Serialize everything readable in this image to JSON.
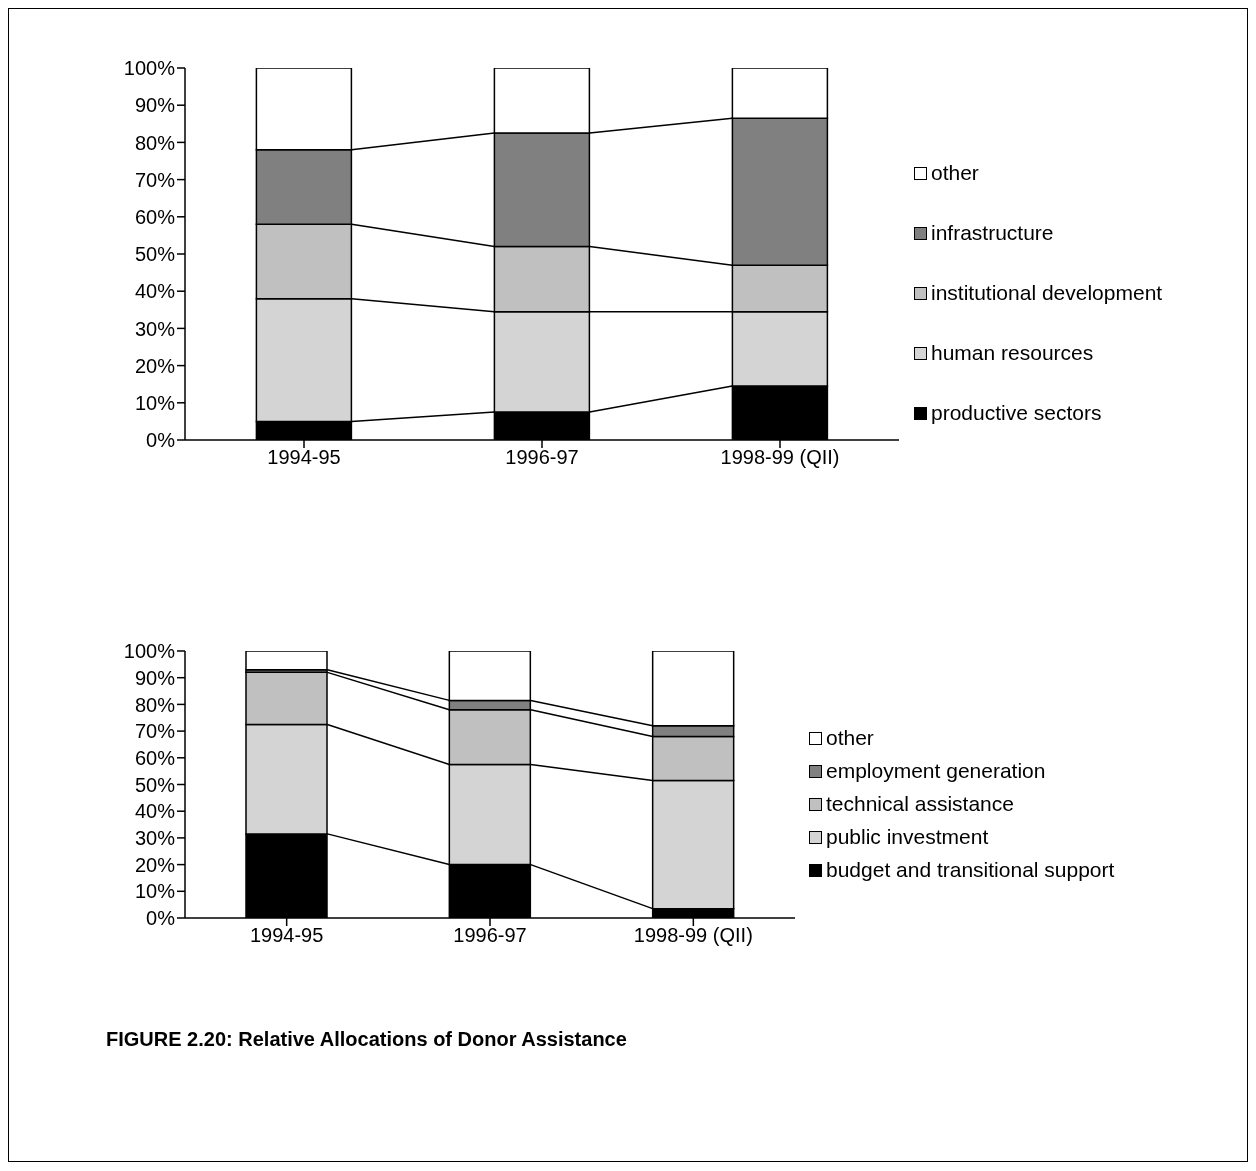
{
  "chart_data": [
    {
      "type": "bar",
      "stacked": true,
      "categories": [
        "1994-95",
        "1996-97",
        "1998-99 (QII)"
      ],
      "ylim": [
        0,
        100
      ],
      "yticks": [
        {
          "value": 0,
          "label": "0%"
        },
        {
          "value": 10,
          "label": "10%"
        },
        {
          "value": 20,
          "label": "20%"
        },
        {
          "value": 30,
          "label": "30%"
        },
        {
          "value": 40,
          "label": "40%"
        },
        {
          "value": 50,
          "label": "50%"
        },
        {
          "value": 60,
          "label": "60%"
        },
        {
          "value": 70,
          "label": "70%"
        },
        {
          "value": 80,
          "label": "80%"
        },
        {
          "value": 90,
          "label": "90%"
        },
        {
          "value": 100,
          "label": "100%"
        }
      ],
      "grid": false,
      "legend": "right",
      "series": [
        {
          "name": "productive sectors",
          "color": "#000000",
          "values": [
            5,
            7.5,
            14.5
          ]
        },
        {
          "name": "human resources",
          "color": "#d4d4d4",
          "values": [
            33,
            27,
            20
          ]
        },
        {
          "name": "institutional development",
          "color": "#c0c0c0",
          "values": [
            20,
            17.5,
            12.5
          ]
        },
        {
          "name": "infrastructure",
          "color": "#808080",
          "values": [
            20,
            30.5,
            39.5
          ]
        },
        {
          "name": "other",
          "color": "#ffffff",
          "values": [
            22,
            17.5,
            13.5
          ]
        }
      ]
    },
    {
      "type": "bar",
      "stacked": true,
      "categories": [
        "1994-95",
        "1996-97",
        "1998-99 (QII)"
      ],
      "ylim": [
        0,
        100
      ],
      "yticks": [
        {
          "value": 0,
          "label": "0%"
        },
        {
          "value": 10,
          "label": "10%"
        },
        {
          "value": 20,
          "label": "20%"
        },
        {
          "value": 30,
          "label": "30%"
        },
        {
          "value": 40,
          "label": "40%"
        },
        {
          "value": 50,
          "label": "50%"
        },
        {
          "value": 60,
          "label": "60%"
        },
        {
          "value": 70,
          "label": "70%"
        },
        {
          "value": 80,
          "label": "80%"
        },
        {
          "value": 90,
          "label": "90%"
        },
        {
          "value": 100,
          "label": "100%"
        }
      ],
      "grid": false,
      "legend": "right",
      "annotations": [
        "FIGURE 2.20: Relative Allocations of Donor Assistance"
      ],
      "series": [
        {
          "name": "budget and transitional support",
          "color": "#000000",
          "values": [
            31.5,
            20,
            3.5
          ]
        },
        {
          "name": "public investment",
          "color": "#d4d4d4",
          "values": [
            41,
            37.5,
            48
          ]
        },
        {
          "name": "technical assistance",
          "color": "#c0c0c0",
          "values": [
            19.5,
            20.5,
            16.5
          ]
        },
        {
          "name": "employment generation",
          "color": "#808080",
          "values": [
            1,
            3.5,
            4
          ]
        },
        {
          "name": "other",
          "color": "#ffffff",
          "values": [
            7,
            18.5,
            28
          ]
        }
      ]
    }
  ]
}
